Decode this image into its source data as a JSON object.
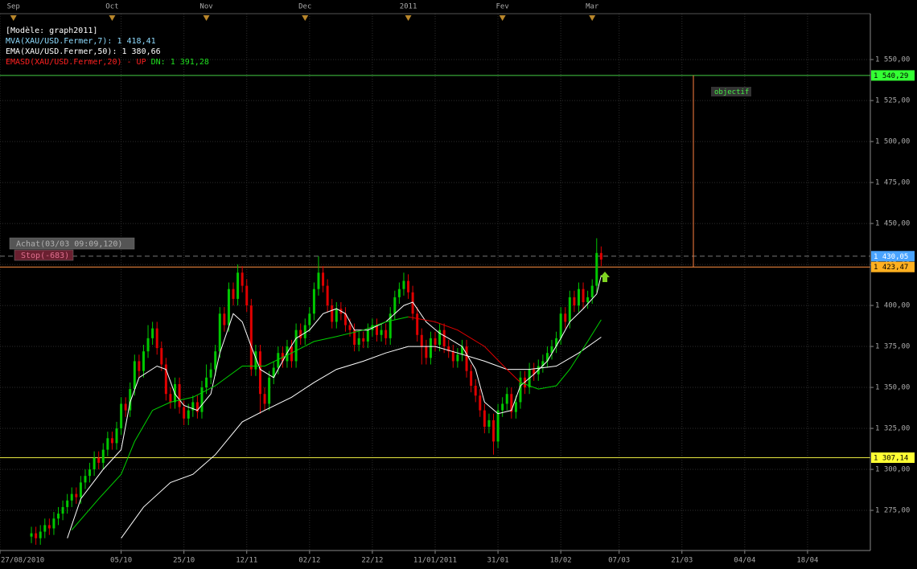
{
  "chart_data": {
    "type": "candlestick",
    "title": "[Modèle: graph2011]",
    "xlim": [
      0,
      194
    ],
    "ylim": [
      1250.5,
      1578
    ],
    "grid": true,
    "yticks": [
      {
        "value": 1550,
        "label": "1 550,00"
      },
      {
        "value": 1525,
        "label": "1 525,00"
      },
      {
        "value": 1500,
        "label": "1 500,00"
      },
      {
        "value": 1475,
        "label": "1 475,00"
      },
      {
        "value": 1450,
        "label": "1 450,00"
      },
      {
        "value": 1425,
        "label": "1 425,00"
      },
      {
        "value": 1400,
        "label": "1 400,00"
      },
      {
        "value": 1375,
        "label": "1 375,00"
      },
      {
        "value": 1350,
        "label": "1 350,00"
      },
      {
        "value": 1325,
        "label": "1 325,00"
      },
      {
        "value": 1300,
        "label": "1 300,00"
      },
      {
        "value": 1275,
        "label": "1 275,00"
      }
    ],
    "xticks": [
      {
        "value": 0,
        "label": "27/08/2010"
      },
      {
        "value": 27,
        "label": "05/10"
      },
      {
        "value": 41,
        "label": "25/10"
      },
      {
        "value": 55,
        "label": "12/11"
      },
      {
        "value": 69,
        "label": "02/12"
      },
      {
        "value": 83,
        "label": "22/12"
      },
      {
        "value": 97,
        "label": "11/01/2011"
      },
      {
        "value": 111,
        "label": "31/01"
      },
      {
        "value": 125,
        "label": "18/02"
      },
      {
        "value": 138,
        "label": "07/03"
      },
      {
        "value": 152,
        "label": "21/03"
      },
      {
        "value": 166,
        "label": "04/04"
      },
      {
        "value": 180,
        "label": "18/04"
      }
    ],
    "top_ticks": [
      {
        "value": 3,
        "label": "Sep"
      },
      {
        "value": 25,
        "label": "Oct"
      },
      {
        "value": 46,
        "label": "Nov"
      },
      {
        "value": 68,
        "label": "Dec"
      },
      {
        "value": 91,
        "label": "2011"
      },
      {
        "value": 112,
        "label": "Fev"
      },
      {
        "value": 132,
        "label": "Mar"
      }
    ],
    "candles": {
      "up_color": "#00c800",
      "down_color": "#e00000",
      "x": [
        7,
        8,
        9,
        10,
        11,
        12,
        13,
        14,
        15,
        16,
        17,
        18,
        19,
        20,
        21,
        22,
        23,
        24,
        25,
        26,
        27,
        28,
        29,
        30,
        31,
        32,
        33,
        34,
        35,
        36,
        37,
        38,
        39,
        40,
        41,
        42,
        43,
        44,
        45,
        46,
        47,
        48,
        49,
        50,
        51,
        52,
        53,
        54,
        55,
        56,
        57,
        58,
        59,
        60,
        61,
        62,
        63,
        64,
        65,
        66,
        67,
        68,
        69,
        70,
        71,
        72,
        73,
        74,
        75,
        76,
        77,
        78,
        79,
        80,
        81,
        82,
        83,
        84,
        85,
        86,
        87,
        88,
        89,
        90,
        91,
        92,
        93,
        94,
        95,
        96,
        97,
        98,
        99,
        100,
        101,
        102,
        103,
        104,
        105,
        106,
        107,
        108,
        109,
        110,
        111,
        112,
        113,
        114,
        115,
        116,
        117,
        118,
        119,
        120,
        121,
        122,
        123,
        124,
        125,
        126,
        127,
        128,
        129,
        130,
        131,
        132,
        133,
        134
      ],
      "open": [
        1259,
        1261,
        1258,
        1262,
        1266,
        1264,
        1270,
        1273,
        1277,
        1281,
        1285,
        1283,
        1292,
        1296,
        1300,
        1307,
        1304,
        1312,
        1319,
        1316,
        1325,
        1340,
        1336,
        1349,
        1366,
        1360,
        1372,
        1380,
        1386,
        1374,
        1364,
        1346,
        1341,
        1352,
        1338,
        1331,
        1336,
        1341,
        1335,
        1350,
        1356,
        1361,
        1372,
        1395,
        1388,
        1410,
        1404,
        1420,
        1412,
        1400,
        1361,
        1372,
        1346,
        1340,
        1356,
        1362,
        1371,
        1366,
        1375,
        1366,
        1385,
        1380,
        1388,
        1395,
        1410,
        1420,
        1412,
        1400,
        1390,
        1398,
        1395,
        1388,
        1385,
        1376,
        1380,
        1378,
        1385,
        1388,
        1382,
        1385,
        1380,
        1395,
        1405,
        1410,
        1415,
        1408,
        1395,
        1382,
        1375,
        1368,
        1380,
        1376,
        1385,
        1375,
        1372,
        1366,
        1370,
        1375,
        1360,
        1351,
        1345,
        1336,
        1326,
        1330,
        1317,
        1336,
        1340,
        1346,
        1335,
        1341,
        1356,
        1350,
        1361,
        1358,
        1363,
        1366,
        1371,
        1375,
        1380,
        1395,
        1390,
        1405,
        1400,
        1410,
        1402,
        1405,
        1412,
        1432
      ],
      "high": [
        1265,
        1265,
        1266,
        1270,
        1270,
        1274,
        1277,
        1281,
        1285,
        1289,
        1289,
        1296,
        1300,
        1304,
        1311,
        1311,
        1316,
        1323,
        1323,
        1329,
        1344,
        1344,
        1353,
        1370,
        1370,
        1376,
        1388,
        1390,
        1390,
        1378,
        1368,
        1350,
        1356,
        1356,
        1342,
        1340,
        1345,
        1345,
        1354,
        1364,
        1365,
        1376,
        1399,
        1399,
        1414,
        1414,
        1425,
        1424,
        1416,
        1404,
        1376,
        1376,
        1350,
        1360,
        1366,
        1375,
        1375,
        1379,
        1379,
        1389,
        1389,
        1392,
        1399,
        1414,
        1430,
        1424,
        1416,
        1404,
        1402,
        1402,
        1399,
        1392,
        1389,
        1384,
        1384,
        1389,
        1392,
        1392,
        1389,
        1389,
        1399,
        1409,
        1414,
        1420,
        1419,
        1412,
        1399,
        1386,
        1379,
        1384,
        1384,
        1389,
        1389,
        1379,
        1376,
        1374,
        1379,
        1379,
        1364,
        1355,
        1349,
        1340,
        1334,
        1334,
        1340,
        1344,
        1350,
        1350,
        1345,
        1360,
        1360,
        1365,
        1365,
        1367,
        1370,
        1375,
        1379,
        1384,
        1399,
        1399,
        1409,
        1409,
        1414,
        1414,
        1409,
        1416,
        1441,
        1436
      ],
      "low": [
        1255,
        1254,
        1254,
        1258,
        1260,
        1260,
        1266,
        1269,
        1273,
        1277,
        1279,
        1279,
        1288,
        1292,
        1296,
        1300,
        1300,
        1308,
        1312,
        1312,
        1321,
        1332,
        1332,
        1345,
        1356,
        1356,
        1368,
        1376,
        1370,
        1360,
        1342,
        1337,
        1337,
        1334,
        1327,
        1327,
        1332,
        1331,
        1331,
        1346,
        1352,
        1357,
        1368,
        1384,
        1384,
        1400,
        1400,
        1408,
        1396,
        1357,
        1357,
        1334,
        1336,
        1336,
        1352,
        1358,
        1362,
        1362,
        1362,
        1362,
        1376,
        1376,
        1384,
        1391,
        1406,
        1408,
        1396,
        1386,
        1386,
        1391,
        1384,
        1381,
        1372,
        1372,
        1374,
        1374,
        1381,
        1378,
        1378,
        1376,
        1376,
        1391,
        1401,
        1406,
        1404,
        1391,
        1378,
        1364,
        1364,
        1364,
        1372,
        1372,
        1371,
        1368,
        1362,
        1362,
        1366,
        1356,
        1347,
        1341,
        1332,
        1322,
        1322,
        1309,
        1313,
        1332,
        1336,
        1331,
        1331,
        1337,
        1346,
        1346,
        1354,
        1354,
        1359,
        1362,
        1367,
        1371,
        1376,
        1386,
        1386,
        1396,
        1396,
        1398,
        1398,
        1401,
        1408,
        1424
      ],
      "close": [
        1261,
        1258,
        1262,
        1266,
        1264,
        1270,
        1273,
        1277,
        1281,
        1285,
        1283,
        1292,
        1296,
        1300,
        1307,
        1304,
        1312,
        1319,
        1316,
        1325,
        1340,
        1336,
        1349,
        1366,
        1360,
        1372,
        1380,
        1386,
        1374,
        1364,
        1346,
        1341,
        1352,
        1338,
        1331,
        1336,
        1341,
        1335,
        1350,
        1356,
        1361,
        1372,
        1395,
        1388,
        1410,
        1404,
        1420,
        1412,
        1400,
        1361,
        1372,
        1346,
        1340,
        1356,
        1362,
        1371,
        1366,
        1375,
        1366,
        1385,
        1380,
        1388,
        1395,
        1410,
        1420,
        1412,
        1400,
        1390,
        1398,
        1395,
        1388,
        1385,
        1376,
        1380,
        1378,
        1385,
        1388,
        1382,
        1385,
        1380,
        1395,
        1405,
        1410,
        1415,
        1408,
        1395,
        1382,
        1375,
        1368,
        1380,
        1376,
        1385,
        1375,
        1372,
        1366,
        1370,
        1375,
        1360,
        1351,
        1345,
        1336,
        1326,
        1330,
        1317,
        1336,
        1340,
        1346,
        1335,
        1341,
        1356,
        1350,
        1361,
        1358,
        1363,
        1366,
        1371,
        1375,
        1380,
        1395,
        1390,
        1405,
        1400,
        1410,
        1402,
        1405,
        1412,
        1432,
        1428
      ]
    },
    "series": [
      {
        "name": "MVA(XAU/USD.Fermer,7): 1 418,41",
        "label_color": "#8fdcff",
        "color": "#ffffff",
        "x": [
          15,
          18,
          23,
          27,
          29,
          31,
          35,
          37,
          39,
          41,
          44,
          47,
          49,
          52,
          54,
          56,
          58,
          61,
          64,
          66,
          69,
          72,
          75,
          77,
          79,
          82,
          86,
          90,
          92,
          95,
          98,
          100,
          103,
          106,
          108,
          111,
          114,
          116,
          119,
          122,
          125,
          127,
          130,
          133,
          134
        ],
        "values": [
          1258,
          1282,
          1300,
          1312,
          1341,
          1356,
          1363,
          1361,
          1346,
          1339,
          1336,
          1346,
          1371,
          1395,
          1390,
          1375,
          1361,
          1356,
          1371,
          1380,
          1385,
          1395,
          1398,
          1395,
          1385,
          1385,
          1390,
          1400,
          1402,
          1390,
          1383,
          1380,
          1375,
          1361,
          1341,
          1334,
          1336,
          1351,
          1358,
          1366,
          1380,
          1390,
          1398,
          1407,
          1418.41
        ]
      },
      {
        "name": "EMA(XAU/USD.Fermer,50): 1 380,66",
        "label_color": "#ffffff",
        "color": "#ffffff",
        "x": [
          27,
          32,
          38,
          43,
          48,
          54,
          59,
          65,
          70,
          75,
          81,
          86,
          91,
          97,
          102,
          108,
          113,
          118,
          124,
          129,
          134
        ],
        "values": [
          1258,
          1277,
          1292,
          1297,
          1309,
          1329,
          1336,
          1344,
          1353,
          1361,
          1366,
          1371,
          1375,
          1375,
          1371,
          1366,
          1361,
          1361,
          1363,
          1371,
          1380.66
        ]
      },
      {
        "name": "EMASD(XAU/USD.Fermer,20) - UP",
        "label_color": "#ff2020",
        "name_suffix": "DN: 1 391,28",
        "suffix_color": "#20e020",
        "x": [
          16,
          22,
          27,
          30,
          34,
          38,
          43,
          48,
          54,
          59,
          65,
          70,
          75,
          81,
          86,
          91,
          97,
          102,
          108,
          113,
          116,
          120,
          124,
          127,
          131,
          134
        ],
        "values": [
          1263,
          1282,
          1297,
          1317,
          1336,
          1341,
          1344,
          1351,
          1363,
          1363,
          1371,
          1378,
          1381,
          1385,
          1390,
          1393,
          1390,
          1385,
          1375,
          1361,
          1353,
          1349,
          1351,
          1361,
          1378,
          1391.28
        ],
        "colors": [
          "#00d000",
          "#00d000",
          "#00d000",
          "#00d000",
          "#00d000",
          "#00d000",
          "#00d000",
          "#00d000",
          "#00d000",
          "#00d000",
          "#00d000",
          "#00d000",
          "#00d000",
          "#00d000",
          "#00d000",
          "#e00000",
          "#e00000",
          "#e00000",
          "#e00000",
          "#e00000",
          "#00d000",
          "#00d000",
          "#00d000",
          "#00d000",
          "#00d000",
          "#00d000"
        ]
      }
    ],
    "levels": [
      {
        "value": 1540.29,
        "label": "1 540,29",
        "color": "#44cc44",
        "label_bg": "#33ff33",
        "text_color": "#000000",
        "style": "solid"
      },
      {
        "value": 1307.14,
        "label": "1 307,14",
        "color": "#e6e640",
        "label_bg": "#ffff33",
        "text_color": "#000000",
        "style": "solid"
      },
      {
        "value": 1430.05,
        "label": "1 430,05",
        "color": "#777777",
        "label_bg": "#4aa4ff",
        "text_color": "#ffffff",
        "style": "dashed"
      },
      {
        "value": 1423.47,
        "label": "1 423,47",
        "color": "#ff9040",
        "label_bg": "#ffb020",
        "text_color": "#000000",
        "style": "solid"
      }
    ],
    "target": {
      "label": "objectif",
      "color": "#ff8040"
    },
    "orders": [
      {
        "label": "Achat(03/03 09:09,120)",
        "bg": "#555555",
        "text_color": "#b0b0b0"
      },
      {
        "label": "Stop(-683)",
        "bg": "#6a2030",
        "text_color": "#e07090"
      }
    ]
  }
}
